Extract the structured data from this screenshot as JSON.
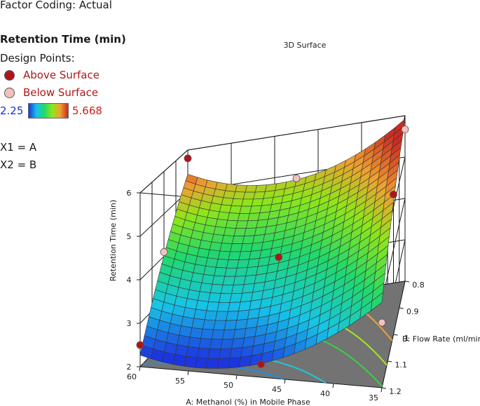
{
  "legend": {
    "factor_coding": "Factor Coding: Actual",
    "response_title": "Retention Time (min)",
    "design_points_title": "Design Points:",
    "above_label": "Above Surface",
    "below_label": "Below Surface",
    "colorbar_min": "2.25",
    "colorbar_max": "5.668",
    "x1_map": "X1 = A",
    "x2_map": "X2 = B"
  },
  "colors": {
    "above_point": "#b0141a",
    "below_point": "#f4c0c0",
    "floor": "#737373",
    "label_red": "#b01818",
    "min_blue": "#1a2fd8",
    "max_red": "#d81a1a"
  },
  "chart_data": {
    "type": "surface",
    "title": "3D Surface",
    "xlabel": "A: Methanol (%) in Mobile Phase",
    "ylabel": "B: Flow Rate (ml/min)",
    "zlabel": "Retention Time (min)",
    "x_ticks": [
      "60",
      "55",
      "50",
      "45",
      "40",
      "35"
    ],
    "y_ticks": [
      "0.8",
      "0.9",
      "1",
      "1.1",
      "1.2"
    ],
    "z_ticks": [
      "2",
      "3",
      "4",
      "5",
      "6"
    ],
    "xlim": [
      35,
      60
    ],
    "ylim": [
      0.8,
      1.2
    ],
    "zlim": [
      2,
      6
    ],
    "color_range": [
      2.25,
      5.668
    ],
    "surface_samples": [
      {
        "a": 60,
        "b": 1.2,
        "z": 2.4
      },
      {
        "a": 47.5,
        "b": 1.2,
        "z": 2.15
      },
      {
        "a": 35,
        "b": 1.2,
        "z": 4.0
      },
      {
        "a": 60,
        "b": 1.0,
        "z": 3.9
      },
      {
        "a": 47.5,
        "b": 1.0,
        "z": 3.8
      },
      {
        "a": 35,
        "b": 1.0,
        "z": 5.2
      },
      {
        "a": 60,
        "b": 0.8,
        "z": 5.4
      },
      {
        "a": 47.5,
        "b": 0.8,
        "z": 5.0
      },
      {
        "a": 35,
        "b": 0.8,
        "z": 5.8
      }
    ],
    "design_points": [
      {
        "a": 60,
        "b": 1.2,
        "z": 2.5,
        "pos": "above"
      },
      {
        "a": 47.5,
        "b": 1.2,
        "z": 2.3,
        "pos": "above"
      },
      {
        "a": 60,
        "b": 0.8,
        "z": 5.8,
        "pos": "above"
      },
      {
        "a": 35,
        "b": 1.0,
        "z": 5.3,
        "pos": "above"
      },
      {
        "a": 47.5,
        "b": 1.0,
        "z": 3.9,
        "pos": "above"
      },
      {
        "a": 35,
        "b": 0.8,
        "z": 5.67,
        "pos": "below"
      },
      {
        "a": 35,
        "b": 1.2,
        "z": 3.5,
        "pos": "below"
      },
      {
        "a": 47.5,
        "b": 0.8,
        "z": 4.9,
        "pos": "below"
      },
      {
        "a": 60,
        "b": 1.0,
        "z": 4.1,
        "pos": "below"
      }
    ],
    "floor_contours": [
      {
        "level": 2.5,
        "color": "#1d8fe0"
      },
      {
        "level": 3.0,
        "color": "#1ec8d8"
      },
      {
        "level": 4.0,
        "color": "#36d246"
      },
      {
        "level": 4.5,
        "color": "#a8e61c"
      },
      {
        "level": 5.0,
        "color": "#f0a030"
      }
    ],
    "grid": true
  }
}
